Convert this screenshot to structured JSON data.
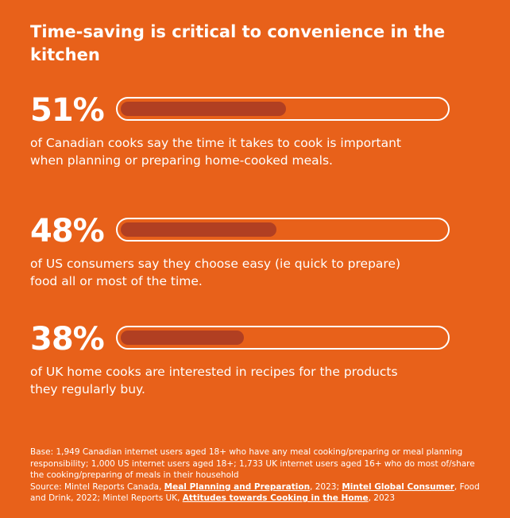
{
  "title": "Time-saving is critical to convenience in the kitchen",
  "accent_color": "#E8611A",
  "bar_fill_color": "#B13F22",
  "chart_data": {
    "type": "bar",
    "title": "Time-saving is critical to convenience in the kitchen",
    "categories": [
      "of Canadian cooks say the time it takes to cook is important when planning or preparing home-cooked meals.",
      "of US consumers say they choose easy (ie quick to prepare) food all or most of the time.",
      "of UK home cooks are interested in recipes for the products they regularly buy."
    ],
    "values": [
      51,
      48,
      38
    ],
    "labels": [
      "51%",
      "48%",
      "38%"
    ],
    "ylim": [
      0,
      100
    ],
    "orientation": "horizontal"
  },
  "footnote": {
    "base": "Base: 1,949 Canadian internet users aged 18+ who have any meal cooking/preparing or meal planning responsibility; 1,000 US internet users aged 18+; 1,733 UK internet users aged 16+ who do most of/share the cooking/preparing of meals in their household",
    "source_prefix": "Source: Mintel Reports Canada, ",
    "source_link_1": "Meal Planning and Preparation",
    "source_mid_1": ", 2023; ",
    "source_link_2": "Mintel Global Consumer",
    "source_mid_2": ", Food and Drink, 2022; Mintel Reports UK, ",
    "source_link_3": "Attitudes towards Cooking in the Home",
    "source_suffix": ", 2023"
  }
}
